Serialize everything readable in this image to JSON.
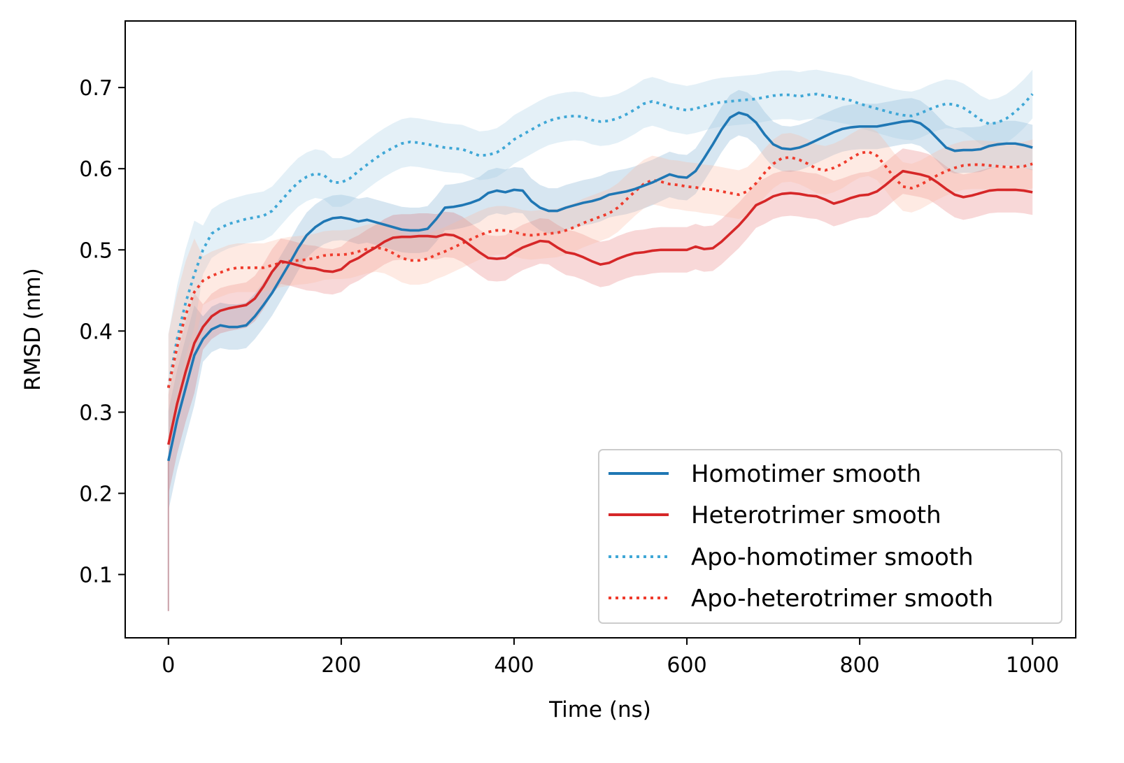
{
  "chart_data": {
    "type": "line",
    "title": "",
    "xlabel": "Time (ns)",
    "ylabel": "RMSD (nm)",
    "xlim": [
      -50,
      1050
    ],
    "ylim": [
      0.022,
      0.782
    ],
    "xticks": [
      0,
      200,
      400,
      600,
      800,
      1000
    ],
    "yticks": [
      0.1,
      0.2,
      0.3,
      0.4,
      0.5,
      0.6,
      0.7
    ],
    "grid": false,
    "legend": {
      "position": "bottom-right",
      "entries": [
        "Homotimer smooth",
        "Heterotrimer smooth",
        "Apo-homotimer smooth",
        "Apo-heterotrimer smooth"
      ]
    },
    "series": [
      {
        "name": "Homotimer smooth",
        "color": "#1f77b4",
        "style": "solid",
        "x": [
          0,
          10,
          20,
          30,
          40,
          50,
          60,
          70,
          80,
          90,
          100,
          110,
          120,
          130,
          140,
          150,
          160,
          170,
          180,
          190,
          200,
          210,
          220,
          230,
          240,
          250,
          260,
          270,
          280,
          290,
          300,
          310,
          320,
          330,
          340,
          350,
          360,
          370,
          380,
          390,
          400,
          410,
          420,
          430,
          440,
          450,
          460,
          470,
          480,
          490,
          500,
          510,
          520,
          530,
          540,
          550,
          560,
          570,
          580,
          590,
          600,
          610,
          620,
          630,
          640,
          650,
          660,
          670,
          680,
          690,
          700,
          710,
          720,
          730,
          740,
          750,
          760,
          770,
          780,
          790,
          800,
          810,
          820,
          830,
          840,
          850,
          860,
          870,
          880,
          890,
          900,
          910,
          920,
          930,
          940,
          950,
          960,
          970,
          980,
          990,
          1000
        ],
        "y": [
          0.24,
          0.29,
          0.33,
          0.37,
          0.39,
          0.402,
          0.407,
          0.405,
          0.405,
          0.407,
          0.418,
          0.432,
          0.447,
          0.465,
          0.483,
          0.502,
          0.518,
          0.528,
          0.535,
          0.539,
          0.54,
          0.538,
          0.535,
          0.537,
          0.534,
          0.531,
          0.528,
          0.525,
          0.524,
          0.524,
          0.526,
          0.538,
          0.552,
          0.553,
          0.555,
          0.558,
          0.562,
          0.57,
          0.573,
          0.571,
          0.574,
          0.573,
          0.56,
          0.552,
          0.548,
          0.548,
          0.552,
          0.555,
          0.558,
          0.56,
          0.563,
          0.568,
          0.57,
          0.572,
          0.575,
          0.579,
          0.583,
          0.588,
          0.593,
          0.59,
          0.589,
          0.597,
          0.613,
          0.63,
          0.648,
          0.663,
          0.669,
          0.666,
          0.657,
          0.642,
          0.63,
          0.625,
          0.624,
          0.626,
          0.63,
          0.635,
          0.64,
          0.645,
          0.649,
          0.651,
          0.652,
          0.652,
          0.652,
          0.654,
          0.656,
          0.658,
          0.659,
          0.656,
          0.648,
          0.637,
          0.626,
          0.622,
          0.623,
          0.623,
          0.624,
          0.628,
          0.63,
          0.631,
          0.631,
          0.629,
          0.626
        ]
      },
      {
        "name": "Heterotrimer smooth",
        "color": "#d62728",
        "style": "solid",
        "x": [
          0,
          10,
          20,
          30,
          40,
          50,
          60,
          70,
          80,
          90,
          100,
          110,
          120,
          130,
          140,
          150,
          160,
          170,
          180,
          190,
          200,
          210,
          220,
          230,
          240,
          250,
          260,
          270,
          280,
          290,
          300,
          310,
          320,
          330,
          340,
          350,
          360,
          370,
          380,
          390,
          400,
          410,
          420,
          430,
          440,
          450,
          460,
          470,
          480,
          490,
          500,
          510,
          520,
          530,
          540,
          550,
          560,
          570,
          580,
          590,
          600,
          610,
          620,
          630,
          640,
          650,
          660,
          670,
          680,
          690,
          700,
          710,
          720,
          730,
          740,
          750,
          760,
          770,
          780,
          790,
          800,
          810,
          820,
          830,
          840,
          850,
          860,
          870,
          880,
          890,
          900,
          910,
          920,
          930,
          940,
          950,
          960,
          970,
          980,
          990,
          1000
        ],
        "y": [
          0.26,
          0.31,
          0.35,
          0.385,
          0.405,
          0.418,
          0.425,
          0.428,
          0.43,
          0.432,
          0.44,
          0.455,
          0.473,
          0.486,
          0.484,
          0.481,
          0.478,
          0.477,
          0.474,
          0.473,
          0.476,
          0.485,
          0.49,
          0.497,
          0.503,
          0.51,
          0.515,
          0.516,
          0.516,
          0.517,
          0.517,
          0.516,
          0.519,
          0.518,
          0.513,
          0.505,
          0.497,
          0.49,
          0.489,
          0.49,
          0.497,
          0.503,
          0.507,
          0.511,
          0.51,
          0.503,
          0.497,
          0.495,
          0.491,
          0.486,
          0.482,
          0.484,
          0.489,
          0.493,
          0.496,
          0.497,
          0.499,
          0.5,
          0.5,
          0.5,
          0.5,
          0.504,
          0.501,
          0.502,
          0.51,
          0.52,
          0.53,
          0.542,
          0.555,
          0.56,
          0.566,
          0.569,
          0.57,
          0.569,
          0.567,
          0.566,
          0.562,
          0.557,
          0.56,
          0.564,
          0.567,
          0.568,
          0.572,
          0.58,
          0.589,
          0.597,
          0.595,
          0.593,
          0.59,
          0.583,
          0.575,
          0.568,
          0.565,
          0.567,
          0.57,
          0.573,
          0.574,
          0.574,
          0.574,
          0.573,
          0.571
        ]
      },
      {
        "name": "Apo-homotimer smooth",
        "color": "#3fa7d6",
        "style": "dotted",
        "x": [
          0,
          10,
          20,
          30,
          40,
          50,
          60,
          70,
          80,
          90,
          100,
          110,
          120,
          130,
          140,
          150,
          160,
          170,
          180,
          190,
          200,
          210,
          220,
          230,
          240,
          250,
          260,
          270,
          280,
          290,
          300,
          310,
          320,
          330,
          340,
          350,
          360,
          370,
          380,
          390,
          400,
          410,
          420,
          430,
          440,
          450,
          460,
          470,
          480,
          490,
          500,
          510,
          520,
          530,
          540,
          550,
          560,
          570,
          580,
          590,
          600,
          610,
          620,
          630,
          640,
          650,
          660,
          670,
          680,
          690,
          700,
          710,
          720,
          730,
          740,
          750,
          760,
          770,
          780,
          790,
          800,
          810,
          820,
          830,
          840,
          850,
          860,
          870,
          880,
          890,
          900,
          910,
          920,
          930,
          940,
          950,
          960,
          970,
          980,
          990,
          1000
        ],
        "y": [
          0.33,
          0.39,
          0.435,
          0.47,
          0.5,
          0.52,
          0.527,
          0.532,
          0.535,
          0.538,
          0.54,
          0.542,
          0.548,
          0.56,
          0.572,
          0.583,
          0.59,
          0.594,
          0.592,
          0.583,
          0.583,
          0.588,
          0.597,
          0.605,
          0.613,
          0.62,
          0.626,
          0.631,
          0.633,
          0.632,
          0.63,
          0.628,
          0.626,
          0.625,
          0.624,
          0.62,
          0.616,
          0.617,
          0.62,
          0.627,
          0.636,
          0.642,
          0.648,
          0.654,
          0.659,
          0.662,
          0.664,
          0.665,
          0.664,
          0.66,
          0.658,
          0.659,
          0.662,
          0.667,
          0.673,
          0.68,
          0.683,
          0.68,
          0.676,
          0.674,
          0.672,
          0.674,
          0.677,
          0.68,
          0.682,
          0.683,
          0.684,
          0.685,
          0.686,
          0.688,
          0.69,
          0.691,
          0.691,
          0.689,
          0.691,
          0.692,
          0.69,
          0.688,
          0.686,
          0.684,
          0.68,
          0.677,
          0.674,
          0.671,
          0.668,
          0.666,
          0.665,
          0.668,
          0.673,
          0.677,
          0.68,
          0.679,
          0.675,
          0.668,
          0.66,
          0.655,
          0.657,
          0.662,
          0.67,
          0.68,
          0.692
        ]
      },
      {
        "name": "Apo-heterotrimer smooth",
        "color": "#ef3b2c",
        "style": "dotted",
        "x": [
          0,
          10,
          20,
          30,
          40,
          50,
          60,
          70,
          80,
          90,
          100,
          110,
          120,
          130,
          140,
          150,
          160,
          170,
          180,
          190,
          200,
          210,
          220,
          230,
          240,
          250,
          260,
          270,
          280,
          290,
          300,
          310,
          320,
          330,
          340,
          350,
          360,
          370,
          380,
          390,
          400,
          410,
          420,
          430,
          440,
          450,
          460,
          470,
          480,
          490,
          500,
          510,
          520,
          530,
          540,
          550,
          560,
          570,
          580,
          590,
          600,
          610,
          620,
          630,
          640,
          650,
          660,
          670,
          680,
          690,
          700,
          710,
          720,
          730,
          740,
          750,
          760,
          770,
          780,
          790,
          800,
          810,
          820,
          830,
          840,
          850,
          860,
          870,
          880,
          890,
          900,
          910,
          920,
          930,
          940,
          950,
          960,
          970,
          980,
          990,
          1000
        ],
        "y": [
          0.33,
          0.38,
          0.42,
          0.448,
          0.462,
          0.468,
          0.472,
          0.476,
          0.478,
          0.478,
          0.478,
          0.478,
          0.481,
          0.484,
          0.486,
          0.487,
          0.488,
          0.49,
          0.493,
          0.494,
          0.494,
          0.495,
          0.498,
          0.501,
          0.503,
          0.501,
          0.496,
          0.49,
          0.487,
          0.487,
          0.489,
          0.494,
          0.498,
          0.503,
          0.508,
          0.513,
          0.518,
          0.522,
          0.524,
          0.524,
          0.522,
          0.519,
          0.518,
          0.519,
          0.52,
          0.521,
          0.524,
          0.528,
          0.533,
          0.537,
          0.541,
          0.545,
          0.552,
          0.562,
          0.572,
          0.581,
          0.586,
          0.584,
          0.581,
          0.58,
          0.578,
          0.577,
          0.575,
          0.574,
          0.572,
          0.57,
          0.568,
          0.572,
          0.582,
          0.595,
          0.606,
          0.613,
          0.614,
          0.611,
          0.606,
          0.6,
          0.598,
          0.601,
          0.606,
          0.613,
          0.619,
          0.621,
          0.616,
          0.603,
          0.589,
          0.578,
          0.576,
          0.58,
          0.586,
          0.592,
          0.597,
          0.601,
          0.604,
          0.605,
          0.605,
          0.604,
          0.603,
          0.602,
          0.602,
          0.603,
          0.606
        ]
      }
    ]
  }
}
